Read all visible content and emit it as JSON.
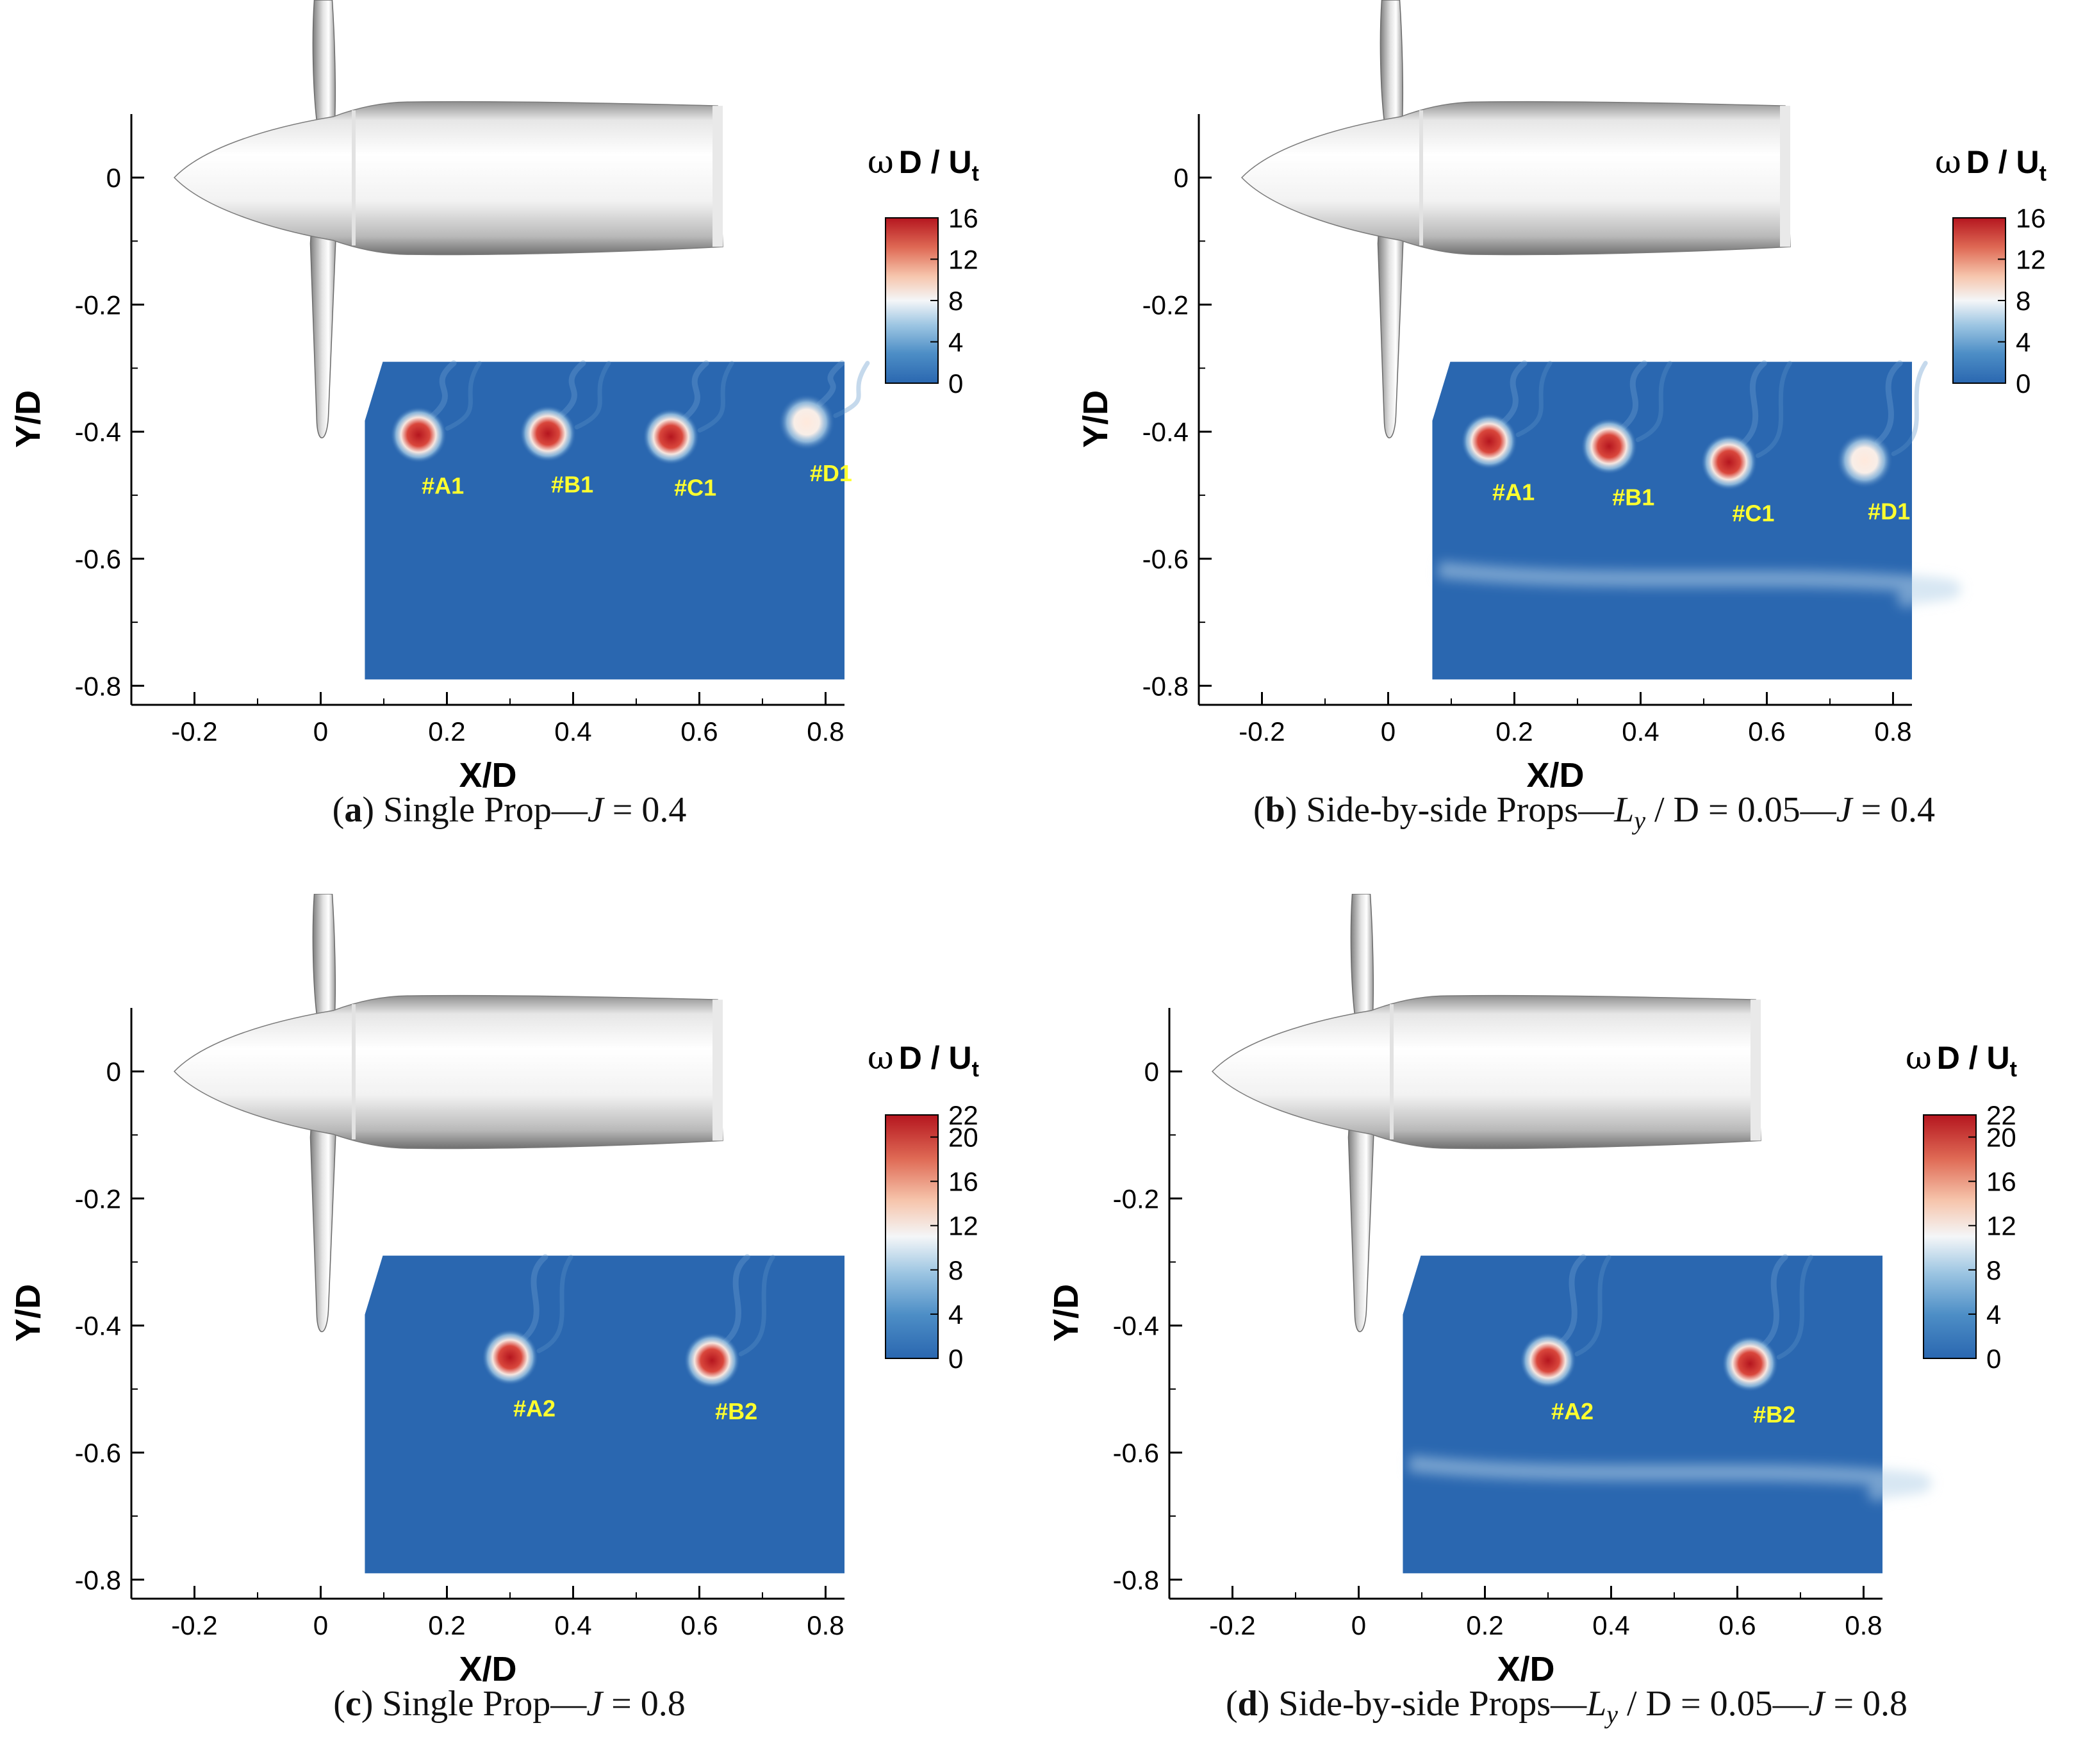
{
  "colors": {
    "background_field": "#2a67b0",
    "core_red": "#b5161f",
    "core_light": "#f7e6df",
    "label_yellow": "#ffff2e",
    "nacelle": "#d8d8d8",
    "axis": "#000000"
  },
  "chart_data": [
    {
      "id": "a",
      "type": "heatmap",
      "xlabel": "X/D",
      "ylabel": "Y/D",
      "xlim": [
        -0.3,
        0.83
      ],
      "ylim": [
        -0.83,
        0.1
      ],
      "x_ticks": [
        "-0.2",
        "0",
        "0.2",
        "0.4",
        "0.6",
        "0.8"
      ],
      "y_ticks": [
        "0",
        "-0.2",
        "-0.4",
        "-0.6",
        "-0.8"
      ],
      "field_extent": {
        "x": [
          0.07,
          0.83
        ],
        "y": [
          -0.79,
          -0.29
        ]
      },
      "wake_band": false,
      "colorbar": {
        "title_omega": "ω",
        "title_rest": "D / U",
        "title_sub": "t",
        "range": [
          0,
          16
        ],
        "ticks": [
          "16",
          "12",
          "8",
          "4",
          "0"
        ]
      },
      "vortices": [
        {
          "label": "#A1",
          "x": 0.155,
          "y": -0.405,
          "intensity": 1.0
        },
        {
          "label": "#B1",
          "x": 0.36,
          "y": -0.403,
          "intensity": 1.0
        },
        {
          "label": "#C1",
          "x": 0.555,
          "y": -0.408,
          "intensity": 1.0
        },
        {
          "label": "#D1",
          "x": 0.77,
          "y": -0.385,
          "intensity": 0.55
        }
      ],
      "caption": {
        "letter": "a",
        "text_before": " Single Prop—",
        "var_j": "J",
        "text_after": " = 0.4"
      }
    },
    {
      "id": "b",
      "type": "heatmap",
      "xlabel": "X/D",
      "ylabel": "Y/D",
      "xlim": [
        -0.3,
        0.83
      ],
      "ylim": [
        -0.83,
        0.1
      ],
      "x_ticks": [
        "-0.2",
        "0",
        "0.2",
        "0.4",
        "0.6",
        "0.8"
      ],
      "y_ticks": [
        "0",
        "-0.2",
        "-0.4",
        "-0.6",
        "-0.8"
      ],
      "field_extent": {
        "x": [
          0.07,
          0.83
        ],
        "y": [
          -0.79,
          -0.29
        ]
      },
      "wake_band": true,
      "colorbar": {
        "title_omega": "ω",
        "title_rest": "D / U",
        "title_sub": "t",
        "range": [
          0,
          16
        ],
        "ticks": [
          "16",
          "12",
          "8",
          "4",
          "0"
        ]
      },
      "vortices": [
        {
          "label": "#A1",
          "x": 0.16,
          "y": -0.415,
          "intensity": 1.0
        },
        {
          "label": "#B1",
          "x": 0.35,
          "y": -0.423,
          "intensity": 0.95
        },
        {
          "label": "#C1",
          "x": 0.54,
          "y": -0.448,
          "intensity": 0.85
        },
        {
          "label": "#D1",
          "x": 0.755,
          "y": -0.445,
          "intensity": 0.5
        }
      ],
      "caption": {
        "letter": "b",
        "text_before": " Side-by-side Props—",
        "var_l": "L",
        "var_l_sub": "y",
        "text_mid": " / D = 0.05—",
        "var_j": "J",
        "text_after": " = 0.4"
      }
    },
    {
      "id": "c",
      "type": "heatmap",
      "xlabel": "X/D",
      "ylabel": "Y/D",
      "xlim": [
        -0.3,
        0.83
      ],
      "ylim": [
        -0.83,
        0.1
      ],
      "x_ticks": [
        "-0.2",
        "0",
        "0.2",
        "0.4",
        "0.6",
        "0.8"
      ],
      "y_ticks": [
        "0",
        "-0.2",
        "-0.4",
        "-0.6",
        "-0.8"
      ],
      "field_extent": {
        "x": [
          0.07,
          0.83
        ],
        "y": [
          -0.79,
          -0.29
        ]
      },
      "wake_band": false,
      "colorbar": {
        "title_omega": "ω",
        "title_rest": "D / U",
        "title_sub": "t",
        "range": [
          0,
          22
        ],
        "ticks": [
          "22",
          "20",
          "16",
          "12",
          "8",
          "4",
          "0"
        ]
      },
      "vortices": [
        {
          "label": "#A2",
          "x": 0.3,
          "y": -0.45,
          "intensity": 1.0
        },
        {
          "label": "#B2",
          "x": 0.62,
          "y": -0.455,
          "intensity": 0.85
        }
      ],
      "caption": {
        "letter": "c",
        "text_before": " Single Prop—",
        "var_j": "J",
        "text_after": " = 0.8"
      }
    },
    {
      "id": "d",
      "type": "heatmap",
      "xlabel": "X/D",
      "ylabel": "Y/D",
      "xlim": [
        -0.3,
        0.83
      ],
      "ylim": [
        -0.83,
        0.1
      ],
      "x_ticks": [
        "-0.2",
        "0",
        "0.2",
        "0.4",
        "0.6",
        "0.8"
      ],
      "y_ticks": [
        "0",
        "-0.2",
        "-0.4",
        "-0.6",
        "-0.8"
      ],
      "field_extent": {
        "x": [
          0.07,
          0.83
        ],
        "y": [
          -0.79,
          -0.29
        ]
      },
      "wake_band": true,
      "colorbar": {
        "title_omega": "ω",
        "title_rest": "D / U",
        "title_sub": "t",
        "range": [
          0,
          22
        ],
        "ticks": [
          "22",
          "20",
          "16",
          "12",
          "8",
          "4",
          "0"
        ]
      },
      "vortices": [
        {
          "label": "#A2",
          "x": 0.3,
          "y": -0.455,
          "intensity": 1.0
        },
        {
          "label": "#B2",
          "x": 0.62,
          "y": -0.46,
          "intensity": 0.85
        }
      ],
      "caption": {
        "letter": "d",
        "text_before": " Side-by-side Props—",
        "var_l": "L",
        "var_l_sub": "y",
        "text_mid": " / D = 0.05—",
        "var_j": "J",
        "text_after": " = 0.8"
      }
    }
  ]
}
